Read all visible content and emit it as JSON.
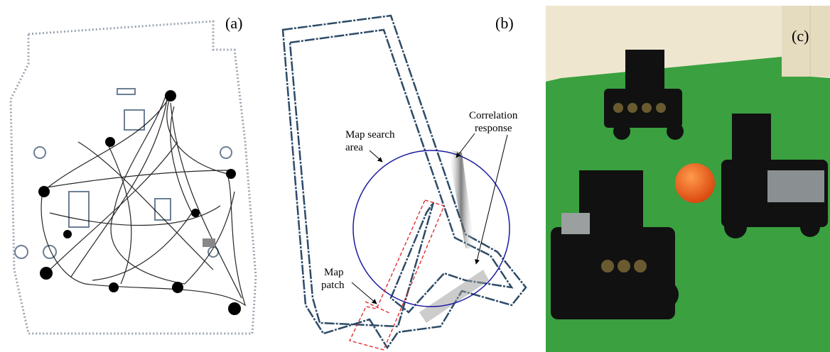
{
  "panels": [
    {
      "label": "(a)"
    },
    {
      "label": "(b)"
    },
    {
      "label": "(c)"
    }
  ],
  "annotations": {
    "search_area": [
      "Map search",
      "area"
    ],
    "correlation": [
      "Correlation",
      "response"
    ],
    "patch": [
      "Map",
      "patch"
    ]
  }
}
